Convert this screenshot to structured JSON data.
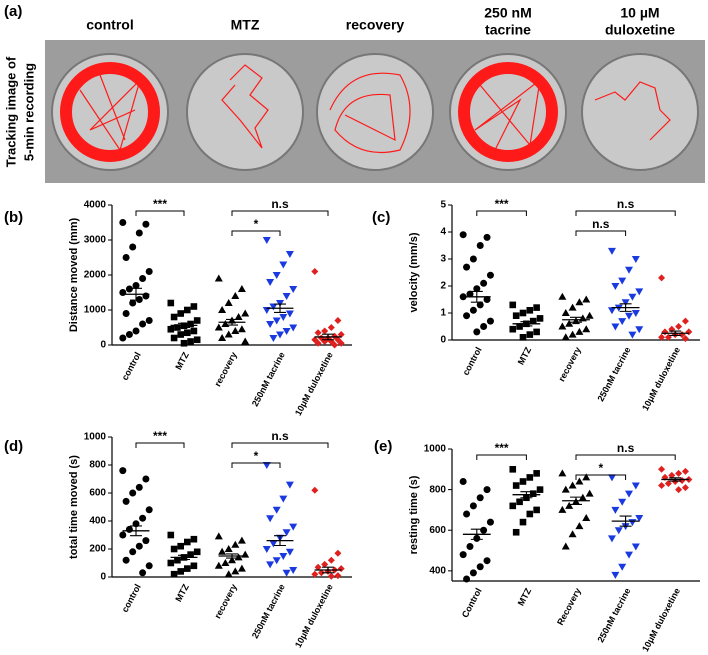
{
  "tracking": {
    "panel": "(a)",
    "ylabel": [
      "Tracking image of",
      "5-min recording"
    ],
    "columns": [
      [
        "control"
      ],
      [
        "MTZ"
      ],
      [
        "recovery"
      ],
      [
        "250 nM",
        "tacrine"
      ],
      [
        "10 µM",
        "duloxetine"
      ]
    ]
  },
  "chart_data": [
    {
      "type": "dotplot",
      "panel": "(b)",
      "ylabel": "Distance moved (mm)",
      "categories": [
        "control",
        "MTZ",
        "recovery",
        "250nM tacrine",
        "10μM duloxetine"
      ],
      "ylim": [
        0,
        4000
      ],
      "yticks": [
        0,
        1000,
        2000,
        3000,
        4000
      ],
      "groups": [
        {
          "color": "#000000",
          "marker": "circle",
          "values": [
            3500,
            3450,
            3200,
            2800,
            2500,
            2100,
            1900,
            1700,
            1600,
            1500,
            1400,
            1300,
            1200,
            900,
            700,
            600,
            400,
            300,
            200
          ],
          "mean": 1450,
          "sem": 170
        },
        {
          "color": "#000000",
          "marker": "square",
          "values": [
            1200,
            1100,
            1000,
            900,
            800,
            700,
            600,
            550,
            500,
            450,
            400,
            350,
            300,
            200,
            150,
            100,
            50
          ],
          "mean": 560,
          "sem": 60
        },
        {
          "color": "#000000",
          "marker": "triangle",
          "values": [
            1900,
            1600,
            1400,
            1200,
            1000,
            900,
            800,
            700,
            600,
            500,
            450,
            400,
            300,
            200,
            100
          ],
          "mean": 650,
          "sem": 80
        },
        {
          "color": "#1a3ae0",
          "marker": "triangle-down",
          "values": [
            3000,
            2600,
            2300,
            2000,
            1800,
            1600,
            1400,
            1200,
            1100,
            1000,
            900,
            800,
            700,
            600,
            500,
            400,
            300,
            200
          ],
          "mean": 1050,
          "sem": 120
        },
        {
          "color": "#e0201f",
          "marker": "diamond",
          "values": [
            2100,
            700,
            500,
            400,
            350,
            300,
            250,
            200,
            200,
            150,
            150,
            100,
            100,
            50,
            50,
            0
          ],
          "mean": 230,
          "sem": 80
        }
      ],
      "comparisons": [
        {
          "between": [
            "control",
            "MTZ"
          ],
          "label": "***"
        },
        {
          "between": [
            "recovery",
            "250nM tacrine"
          ],
          "label": "*"
        },
        {
          "between": [
            "recovery",
            "10μM duloxetine"
          ],
          "label": "n.s"
        }
      ]
    },
    {
      "type": "dotplot",
      "panel": "(c)",
      "ylabel": "velocity (mm/s)",
      "categories": [
        "control",
        "MTZ",
        "recovery",
        "250nM tacrine",
        "10μM duloxetine"
      ],
      "ylim": [
        0,
        5
      ],
      "yticks": [
        0,
        1,
        2,
        3,
        4,
        5
      ],
      "groups": [
        {
          "color": "#000000",
          "marker": "circle",
          "values": [
            3.9,
            3.8,
            3.5,
            3.0,
            2.7,
            2.4,
            2.1,
            1.9,
            1.7,
            1.6,
            1.5,
            1.3,
            1.1,
            0.9,
            0.7,
            0.5,
            0.3
          ],
          "mean": 1.6,
          "sem": 0.2
        },
        {
          "color": "#000000",
          "marker": "square",
          "values": [
            1.3,
            1.2,
            1.1,
            1.0,
            0.9,
            0.8,
            0.7,
            0.6,
            0.5,
            0.4,
            0.3,
            0.2,
            0.1
          ],
          "mean": 0.6,
          "sem": 0.08
        },
        {
          "color": "#000000",
          "marker": "triangle",
          "values": [
            1.6,
            1.5,
            1.4,
            1.2,
            1.0,
            0.9,
            0.8,
            0.7,
            0.6,
            0.5,
            0.4,
            0.3,
            0.2,
            0.1
          ],
          "mean": 0.75,
          "sem": 0.09
        },
        {
          "color": "#1a3ae0",
          "marker": "triangle-down",
          "values": [
            3.3,
            3.0,
            2.6,
            2.2,
            2.0,
            1.8,
            1.6,
            1.4,
            1.2,
            1.1,
            1.0,
            0.9,
            0.7,
            0.5,
            0.4,
            0.2
          ],
          "mean": 1.2,
          "sem": 0.14
        },
        {
          "color": "#e0201f",
          "marker": "diamond",
          "values": [
            2.3,
            0.7,
            0.5,
            0.4,
            0.3,
            0.3,
            0.2,
            0.2,
            0.1,
            0.1,
            0.05
          ],
          "mean": 0.25,
          "sem": 0.08
        }
      ],
      "comparisons": [
        {
          "between": [
            "control",
            "MTZ"
          ],
          "label": "***"
        },
        {
          "between": [
            "recovery",
            "250nM tacrine"
          ],
          "label": "n.s"
        },
        {
          "between": [
            "recovery",
            "10μM duloxetine"
          ],
          "label": "n.s"
        }
      ]
    },
    {
      "type": "dotplot",
      "panel": "(d)",
      "ylabel": "total time moved (s)",
      "categories": [
        "control",
        "MTZ",
        "recovery",
        "250nM tacrine",
        "10μM duloxetine"
      ],
      "ylim": [
        0,
        1000
      ],
      "yticks": [
        0,
        200,
        400,
        600,
        800,
        1000
      ],
      "groups": [
        {
          "color": "#000000",
          "marker": "circle",
          "values": [
            760,
            700,
            640,
            600,
            540,
            480,
            420,
            380,
            340,
            300,
            260,
            220,
            180,
            120,
            80,
            30
          ],
          "mean": 330,
          "sem": 35
        },
        {
          "color": "#000000",
          "marker": "square",
          "values": [
            300,
            270,
            250,
            220,
            200,
            180,
            160,
            140,
            120,
            100,
            80,
            60,
            40,
            20
          ],
          "mean": 140,
          "sem": 15
        },
        {
          "color": "#000000",
          "marker": "triangle",
          "values": [
            290,
            260,
            230,
            200,
            180,
            160,
            140,
            120,
            100,
            80,
            60,
            40,
            20
          ],
          "mean": 150,
          "sem": 15
        },
        {
          "color": "#1a3ae0",
          "marker": "triangle-down",
          "values": [
            800,
            660,
            560,
            480,
            420,
            360,
            320,
            280,
            240,
            200,
            180,
            150,
            120,
            90,
            50,
            30
          ],
          "mean": 260,
          "sem": 35
        },
        {
          "color": "#e0201f",
          "marker": "diamond",
          "values": [
            620,
            170,
            120,
            90,
            70,
            60,
            50,
            40,
            30,
            20,
            10,
            5
          ],
          "mean": 50,
          "sem": 20
        }
      ],
      "comparisons": [
        {
          "between": [
            "control",
            "MTZ"
          ],
          "label": "***"
        },
        {
          "between": [
            "recovery",
            "250nM tacrine"
          ],
          "label": "*"
        },
        {
          "between": [
            "recovery",
            "10μM duloxetine"
          ],
          "label": "n.s"
        }
      ]
    },
    {
      "type": "dotplot",
      "panel": "(e)",
      "ylabel": "resting time (s)",
      "categories": [
        "Control",
        "MTZ",
        "Recovery",
        "250nM tacrine",
        "10μM duloxetine"
      ],
      "ylim": [
        350,
        1000
      ],
      "yticks": [
        400,
        600,
        800,
        1000
      ],
      "groups": [
        {
          "color": "#000000",
          "marker": "circle",
          "values": [
            840,
            800,
            760,
            720,
            680,
            640,
            600,
            560,
            520,
            480,
            450,
            420,
            390,
            360
          ],
          "mean": 580,
          "sem": 25
        },
        {
          "color": "#000000",
          "marker": "square",
          "values": [
            900,
            880,
            860,
            840,
            820,
            800,
            780,
            760,
            740,
            720,
            700,
            680,
            640,
            590
          ],
          "mean": 775,
          "sem": 15
        },
        {
          "color": "#000000",
          "marker": "triangle",
          "values": [
            880,
            860,
            840,
            820,
            800,
            780,
            760,
            740,
            720,
            700,
            660,
            620,
            580,
            520
          ],
          "mean": 745,
          "sem": 18
        },
        {
          "color": "#1a3ae0",
          "marker": "triangle-down",
          "values": [
            860,
            820,
            780,
            740,
            700,
            660,
            640,
            620,
            600,
            560,
            520,
            480,
            420,
            380
          ],
          "mean": 645,
          "sem": 25
        },
        {
          "color": "#e0201f",
          "marker": "diamond",
          "values": [
            900,
            890,
            880,
            870,
            860,
            850,
            845,
            840,
            830,
            820,
            810,
            800
          ],
          "mean": 850,
          "sem": 8
        }
      ],
      "comparisons": [
        {
          "between": [
            "Control",
            "MTZ"
          ],
          "label": "***"
        },
        {
          "between": [
            "Recovery",
            "250nM tacrine"
          ],
          "label": "*"
        },
        {
          "between": [
            "Recovery",
            "10μM duloxetine"
          ],
          "label": "n.s"
        }
      ]
    }
  ]
}
